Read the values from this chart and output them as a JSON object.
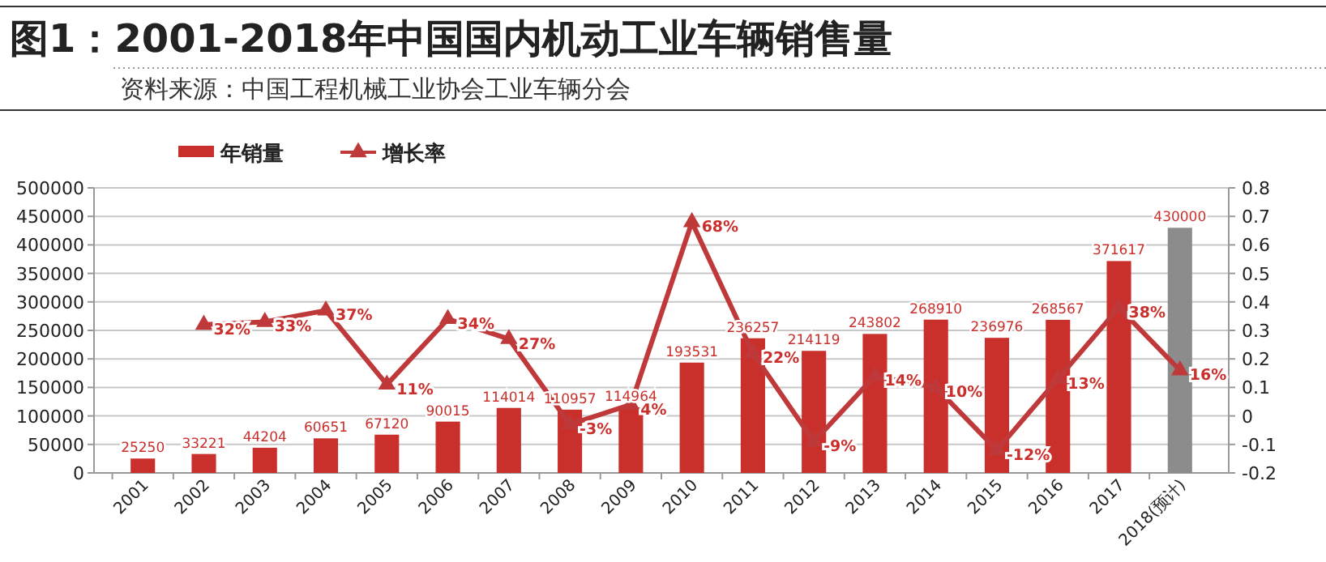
{
  "chart_data": {
    "type": "bar",
    "title": "图1：2001-2018年中国国内机动工业车辆销售量",
    "subtitle": "资料来源：中国工程机械工业协会工业车辆分会",
    "categories": [
      "2001",
      "2002",
      "2003",
      "2004",
      "2005",
      "2006",
      "2007",
      "2008",
      "2009",
      "2010",
      "2011",
      "2012",
      "2013",
      "2014",
      "2015",
      "2016",
      "2017",
      "2018(预计)"
    ],
    "series": [
      {
        "name": "年销量",
        "type": "bar",
        "color": "#c9302c",
        "colors": [
          "#c9302c",
          "#c9302c",
          "#c9302c",
          "#c9302c",
          "#c9302c",
          "#c9302c",
          "#c9302c",
          "#c9302c",
          "#c9302c",
          "#c9302c",
          "#c9302c",
          "#c9302c",
          "#c9302c",
          "#c9302c",
          "#c9302c",
          "#c9302c",
          "#c9302c",
          "#8c8c8c"
        ],
        "values": [
          25250,
          33221,
          44204,
          60651,
          67120,
          90015,
          114014,
          110957,
          114964,
          193531,
          236257,
          214119,
          243802,
          268910,
          236976,
          268567,
          371617,
          430000
        ]
      },
      {
        "name": "增长率",
        "type": "line",
        "axis": "y2",
        "color": "#c0393a",
        "values": [
          null,
          0.32,
          0.33,
          0.37,
          0.11,
          0.34,
          0.27,
          -0.03,
          0.04,
          0.68,
          0.22,
          -0.09,
          0.14,
          0.1,
          -0.12,
          0.13,
          0.38,
          0.16
        ],
        "value_labels": [
          null,
          "32%",
          "33%",
          "37%",
          "11%",
          "34%",
          "27%",
          "-3%",
          "4%",
          "68%",
          "22%",
          "-9%",
          "14%",
          "10%",
          "-12%",
          "13%",
          "38%",
          "16%"
        ]
      }
    ],
    "data_labels": true,
    "ylim": [
      0,
      500000
    ],
    "yticks": [
      0,
      50000,
      100000,
      150000,
      200000,
      250000,
      300000,
      350000,
      400000,
      450000,
      500000
    ],
    "y2lim": [
      -0.2,
      0.8
    ],
    "y2ticks": [
      -0.2,
      -0.1,
      0,
      0.1,
      0.2,
      0.3,
      0.4,
      0.5,
      0.6,
      0.7,
      0.8
    ],
    "grid": "y",
    "legend": "top left",
    "marker": "triangle",
    "line_style": "solid"
  }
}
